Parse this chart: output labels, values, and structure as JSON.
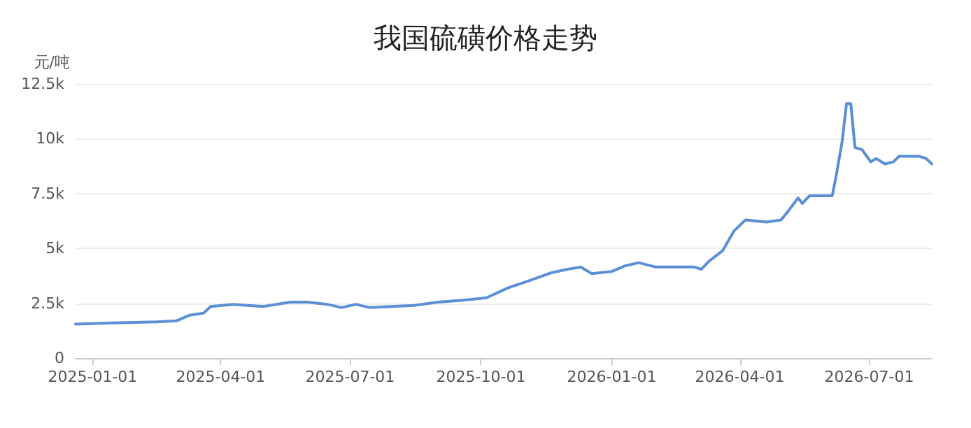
{
  "chart_data": {
    "type": "line",
    "title": "我国硫磺价格走势",
    "ylabel": "元/吨",
    "x": [
      "2024-12-20",
      "2025-01-15",
      "2025-02-15",
      "2025-03-01",
      "2025-03-10",
      "2025-03-20",
      "2025-03-25",
      "2025-04-10",
      "2025-05-01",
      "2025-05-20",
      "2025-06-01",
      "2025-06-15",
      "2025-06-25",
      "2025-07-05",
      "2025-07-15",
      "2025-08-15",
      "2025-09-01",
      "2025-09-20",
      "2025-10-05",
      "2025-10-20",
      "2025-11-05",
      "2025-11-20",
      "2025-12-01",
      "2025-12-10",
      "2025-12-18",
      "2026-01-01",
      "2026-01-10",
      "2026-01-20",
      "2026-02-01",
      "2026-02-28",
      "2026-03-05",
      "2026-03-10",
      "2026-03-20",
      "2026-03-28",
      "2026-04-05",
      "2026-04-20",
      "2026-04-30",
      "2026-05-05",
      "2026-05-12",
      "2026-05-15",
      "2026-05-20",
      "2026-06-05",
      "2026-06-08",
      "2026-06-12",
      "2026-06-15",
      "2026-06-18",
      "2026-06-21",
      "2026-06-26",
      "2026-07-02",
      "2026-07-06",
      "2026-07-12",
      "2026-07-18",
      "2026-07-22",
      "2026-08-05",
      "2026-08-10",
      "2026-08-14"
    ],
    "series": [
      {
        "color": "#5b8fd6",
        "values": [
          1550,
          1600,
          1650,
          1700,
          1950,
          2050,
          2350,
          2450,
          2350,
          2550,
          2550,
          2450,
          2300,
          2450,
          2300,
          2400,
          2550,
          2650,
          2750,
          3200,
          3550,
          3900,
          4050,
          4150,
          3850,
          3950,
          4200,
          4350,
          4150,
          4150,
          4050,
          4400,
          4900,
          5800,
          6300,
          6200,
          6300,
          6700,
          7300,
          7050,
          7400,
          7400,
          8400,
          9900,
          11600,
          11600,
          9600,
          9500,
          8950,
          9100,
          8850,
          8950,
          9200,
          9200,
          9100,
          8850
        ]
      }
    ],
    "xlim": [
      "2024-12-20",
      "2026-08-14"
    ],
    "xticks": [
      "2025-01-01",
      "2025-04-01",
      "2025-07-01",
      "2025-10-01",
      "2026-01-01",
      "2026-04-01",
      "2026-07-01"
    ],
    "ylim": [
      0,
      12500
    ],
    "yticks": [
      0,
      {
        "value": 2500,
        "label": "2.5k"
      },
      {
        "value": 5000,
        "label": "5k"
      },
      {
        "value": 7500,
        "label": "7.5k"
      },
      {
        "value": 10000,
        "label": "10k"
      },
      {
        "value": 12500,
        "label": "12.5k"
      }
    ],
    "grid": "y",
    "marker": "none",
    "line_style": "solid"
  }
}
